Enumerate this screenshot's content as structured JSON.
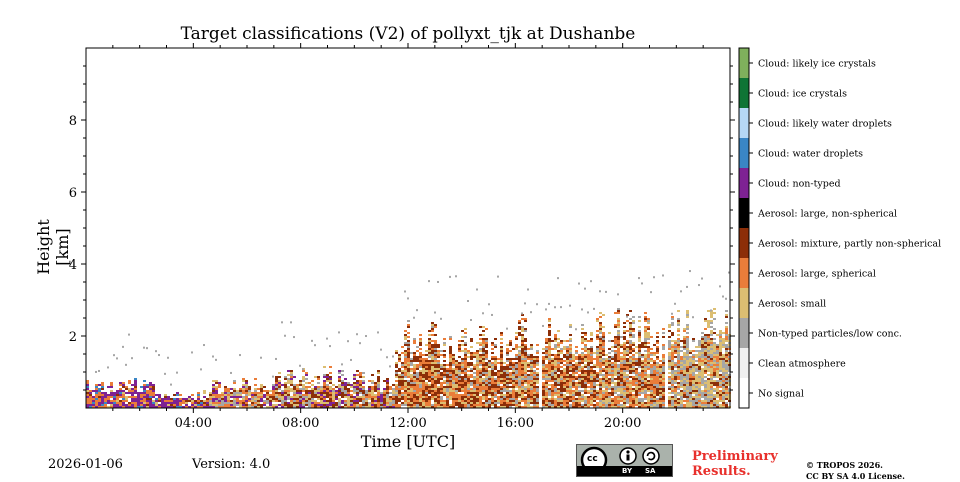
{
  "chart_data": {
    "type": "heatmap",
    "title": "Target classifications (V2) of pollyxt_tjk at Dushanbe",
    "xlabel": "Time [UTC]",
    "ylabel": "Height [km]",
    "xlim_hours": [
      0,
      24
    ],
    "ylim_km": [
      0,
      10
    ],
    "x_ticks": [
      {
        "value": 4,
        "label": "04:00"
      },
      {
        "value": 8,
        "label": "08:00"
      },
      {
        "value": 12,
        "label": "12:00"
      },
      {
        "value": 16,
        "label": "16:00"
      },
      {
        "value": 20,
        "label": "20:00"
      }
    ],
    "y_ticks": [
      {
        "value": 2,
        "label": "2"
      },
      {
        "value": 4,
        "label": "4"
      },
      {
        "value": 6,
        "label": "6"
      },
      {
        "value": 8,
        "label": "8"
      }
    ],
    "classes": [
      {
        "id": 0,
        "label": "No signal",
        "color": "#ffffff"
      },
      {
        "id": 1,
        "label": "Clean atmosphere",
        "color": "#f0f0f0"
      },
      {
        "id": 2,
        "label": "Non-typed particles/low conc.",
        "color": "#a6a6a6"
      },
      {
        "id": 3,
        "label": "Aerosol: small",
        "color": "#dcbe72"
      },
      {
        "id": 4,
        "label": "Aerosol: large, spherical",
        "color": "#ea7d3a"
      },
      {
        "id": 5,
        "label": "Aerosol: mixture, partly non-spherical",
        "color": "#8c2e08"
      },
      {
        "id": 6,
        "label": "Aerosol: large, non-spherical",
        "color": "#000000"
      },
      {
        "id": 7,
        "label": "Cloud: non-typed",
        "color": "#7e2293"
      },
      {
        "id": 8,
        "label": "Cloud: water droplets",
        "color": "#3a86c5"
      },
      {
        "id": 9,
        "label": "Cloud: likely water droplets",
        "color": "#b6d8f5"
      },
      {
        "id": 10,
        "label": "Cloud: ice crystals",
        "color": "#0f7435"
      },
      {
        "id": 11,
        "label": "Cloud: likely ice crystals",
        "color": "#7fb05c"
      }
    ],
    "segments": [
      {
        "start": 0.0,
        "end": 2.5,
        "top_km": 0.75,
        "mix": {
          "3": 0.08,
          "4": 0.32,
          "5": 0.05,
          "7": 0.42,
          "8": 0.13
        }
      },
      {
        "start": 2.5,
        "end": 4.5,
        "top_km": 0.45,
        "mix": {
          "3": 0.1,
          "4": 0.2,
          "5": 0.1,
          "7": 0.55,
          "8": 0.05
        }
      },
      {
        "start": 4.5,
        "end": 7.0,
        "top_km": 0.8,
        "mix": {
          "2": 0.15,
          "3": 0.25,
          "4": 0.3,
          "5": 0.15,
          "7": 0.15
        }
      },
      {
        "start": 7.0,
        "end": 11.5,
        "top_km": 1.0,
        "mix": {
          "2": 0.15,
          "3": 0.2,
          "4": 0.2,
          "5": 0.3,
          "7": 0.15
        }
      },
      {
        "start": 11.5,
        "end": 16.0,
        "top_km": 2.2,
        "mix": {
          "2": 0.12,
          "3": 0.2,
          "4": 0.3,
          "5": 0.38
        }
      },
      {
        "start": 16.0,
        "end": 19.0,
        "top_km": 2.2,
        "mix": {
          "2": 0.15,
          "3": 0.2,
          "4": 0.3,
          "5": 0.35
        }
      },
      {
        "start": 19.0,
        "end": 21.6,
        "top_km": 2.5,
        "mix": {
          "2": 0.2,
          "3": 0.25,
          "4": 0.3,
          "5": 0.25
        }
      },
      {
        "start": 21.6,
        "end": 24.0,
        "top_km": 2.4,
        "mix": {
          "2": 0.35,
          "3": 0.35,
          "4": 0.15,
          "5": 0.15
        }
      }
    ],
    "gaps_hours": [
      16.9,
      21.6
    ]
  },
  "footer": {
    "date": "2026-01-06",
    "version": "Version: 4.0",
    "preliminary": [
      "Preliminary",
      "Results."
    ],
    "copyright": [
      "© TROPOS 2026.",
      "CC BY SA 4.0 License."
    ],
    "license_badge": {
      "cc": "cc",
      "by": "BY",
      "sa": "SA"
    }
  }
}
